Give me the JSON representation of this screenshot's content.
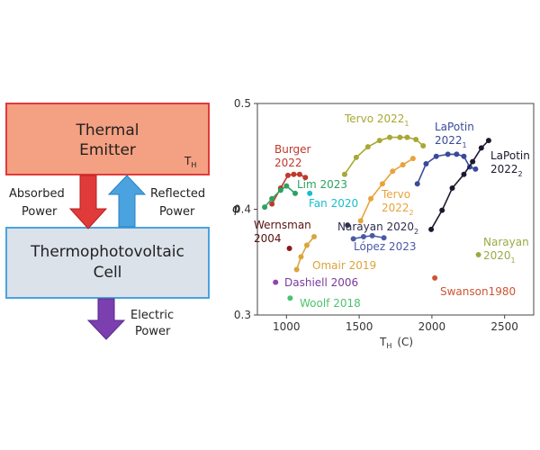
{
  "diagram": {
    "emitter": {
      "line1": "Thermal",
      "line2": "Emitter",
      "subscript_main": "T",
      "subscript_sub": "H"
    },
    "cell": {
      "line1": "Thermophotovoltaic",
      "line2": "Cell"
    },
    "absorbed": {
      "line1": "Absorbed",
      "line2": "Power"
    },
    "reflected": {
      "line1": "Reflected",
      "line2": "Power"
    },
    "electric": {
      "line1": "Electric",
      "line2": "Power"
    },
    "colors": {
      "emitter_fill": "#f4a082",
      "emitter_border": "#e03a3a",
      "cell_fill": "#dbe2ea",
      "cell_border": "#4aa3df",
      "absorbed_arrow": "#e03a3a",
      "reflected_arrow": "#4aa3df",
      "electric_arrow": "#7b3fb0"
    }
  },
  "chart_data": {
    "type": "scatter",
    "xlabel_main": "T",
    "xlabel_sub": "H",
    "xlabel_unit": "(C)",
    "ylabel": "φ",
    "xlim": [
      800,
      2700
    ],
    "ylim": [
      0.3,
      0.5
    ],
    "xticks": [
      {
        "value": 1000,
        "label": "1000"
      },
      {
        "value": 1500,
        "label": "1500"
      },
      {
        "value": 2000,
        "label": "2000"
      },
      {
        "value": 2500,
        "label": "2500"
      }
    ],
    "yticks": [
      {
        "value": 0.3,
        "label": "0.3"
      },
      {
        "value": 0.4,
        "label": "0.4"
      },
      {
        "value": 0.5,
        "label": "0.5"
      }
    ],
    "grid": false,
    "series": [
      {
        "name": "Burger 2022",
        "color": "#c0392b",
        "connect": true,
        "points": [
          [
            900,
            0.405
          ],
          [
            960,
            0.42
          ],
          [
            1010,
            0.432
          ],
          [
            1050,
            0.433
          ],
          [
            1090,
            0.433
          ],
          [
            1130,
            0.43
          ]
        ]
      },
      {
        "name": "Lim 2023",
        "color": "#2ca25f",
        "connect": true,
        "points": [
          [
            850,
            0.402
          ],
          [
            900,
            0.41
          ],
          [
            960,
            0.418
          ],
          [
            1000,
            0.422
          ],
          [
            1060,
            0.415
          ]
        ]
      },
      {
        "name": "Fan 2020",
        "color": "#17becf",
        "connect": false,
        "points": [
          [
            1160,
            0.415
          ]
        ]
      },
      {
        "name": "Wernsman 2004",
        "color": "#8b1a1a",
        "connect": false,
        "points": [
          [
            1020,
            0.363
          ]
        ]
      },
      {
        "name": "Omair 2019",
        "color": "#d9a53a",
        "connect": true,
        "points": [
          [
            1070,
            0.343
          ],
          [
            1100,
            0.355
          ],
          [
            1140,
            0.366
          ],
          [
            1190,
            0.374
          ]
        ]
      },
      {
        "name": "Dashiell 2006",
        "color": "#8e44ad",
        "connect": false,
        "points": [
          [
            925,
            0.331
          ]
        ]
      },
      {
        "name": "Woolf 2018",
        "color": "#4cc26e",
        "connect": false,
        "points": [
          [
            1025,
            0.316
          ]
        ]
      },
      {
        "name": "Tervo 2022_1",
        "color": "#a8a834",
        "connect": true,
        "points": [
          [
            1400,
            0.433
          ],
          [
            1480,
            0.449
          ],
          [
            1560,
            0.459
          ],
          [
            1640,
            0.465
          ],
          [
            1710,
            0.468
          ],
          [
            1780,
            0.468
          ],
          [
            1830,
            0.468
          ],
          [
            1890,
            0.466
          ],
          [
            1940,
            0.46
          ]
        ]
      },
      {
        "name": "Tervo 2022_2",
        "color": "#e8a33a",
        "connect": true,
        "points": [
          [
            1510,
            0.389
          ],
          [
            1580,
            0.41
          ],
          [
            1660,
            0.424
          ],
          [
            1730,
            0.436
          ],
          [
            1800,
            0.442
          ],
          [
            1870,
            0.448
          ]
        ]
      },
      {
        "name": "Narayan 2020_2",
        "color": "#2f2f4f",
        "connect": false,
        "points": [
          [
            1420,
            0.385
          ]
        ]
      },
      {
        "name": "López 2023",
        "color": "#4a5aa8",
        "connect": true,
        "points": [
          [
            1460,
            0.372
          ],
          [
            1530,
            0.374
          ],
          [
            1590,
            0.375
          ],
          [
            1670,
            0.373
          ]
        ]
      },
      {
        "name": "LaPotin 2022_1",
        "color": "#3a4a9a",
        "connect": true,
        "points": [
          [
            1900,
            0.424
          ],
          [
            1960,
            0.443
          ],
          [
            2030,
            0.45
          ],
          [
            2110,
            0.452
          ],
          [
            2170,
            0.452
          ],
          [
            2220,
            0.45
          ],
          [
            2260,
            0.44
          ],
          [
            2300,
            0.438
          ]
        ]
      },
      {
        "name": "LaPotin 2022_2",
        "color": "#1a1a2e",
        "connect": true,
        "points": [
          [
            1995,
            0.381
          ],
          [
            2070,
            0.399
          ],
          [
            2140,
            0.42
          ],
          [
            2220,
            0.433
          ],
          [
            2280,
            0.445
          ],
          [
            2340,
            0.458
          ],
          [
            2390,
            0.465
          ]
        ]
      },
      {
        "name": "Narayan 2020_1",
        "color": "#9aaa44",
        "connect": false,
        "points": [
          [
            2320,
            0.357
          ]
        ]
      },
      {
        "name": "Swanson1980",
        "color": "#cc5533",
        "connect": false,
        "points": [
          [
            2020,
            0.335
          ]
        ]
      }
    ],
    "labels": [
      {
        "series": "Burger 2022",
        "lines": [
          "Burger",
          "2022"
        ],
        "sub": "",
        "color": "#c0392b"
      },
      {
        "series": "Lim 2023",
        "lines": [
          "Lim 2023"
        ],
        "sub": "",
        "color": "#2ca25f"
      },
      {
        "series": "Fan 2020",
        "lines": [
          "Fan 2020"
        ],
        "sub": "",
        "color": "#17becf"
      },
      {
        "series": "Wernsman 2004",
        "lines": [
          "Wernsman",
          "2004"
        ],
        "sub": "",
        "color": "#5a1010"
      },
      {
        "series": "Omair 2019",
        "lines": [
          "Omair 2019"
        ],
        "sub": "",
        "color": "#d9a53a"
      },
      {
        "series": "Dashiell 2006",
        "lines": [
          "Dashiell 2006"
        ],
        "sub": "",
        "color": "#7a3a9a"
      },
      {
        "series": "Woolf 2018",
        "lines": [
          "Woolf 2018"
        ],
        "sub": "",
        "color": "#4cc26e"
      },
      {
        "series": "Tervo 2022_1",
        "lines": [
          "Tervo 2022"
        ],
        "sub": "1",
        "color": "#a8a834"
      },
      {
        "series": "Tervo 2022_2",
        "lines": [
          "Tervo",
          "2022"
        ],
        "sub": "2",
        "color": "#e8a33a"
      },
      {
        "series": "Narayan 2020_2",
        "lines": [
          "Narayan 2020"
        ],
        "sub": "2",
        "color": "#2f2f4f"
      },
      {
        "series": "López 2023",
        "lines": [
          "López 2023"
        ],
        "sub": "",
        "color": "#4a5aa8"
      },
      {
        "series": "LaPotin 2022_1",
        "lines": [
          "LaPotin",
          "2022"
        ],
        "sub": "1",
        "color": "#3a4a9a"
      },
      {
        "series": "LaPotin 2022_2",
        "lines": [
          "LaPotin",
          "2022"
        ],
        "sub": "2",
        "color": "#1a1a2e"
      },
      {
        "series": "Narayan 2020_1",
        "lines": [
          "Narayan",
          "2020"
        ],
        "sub": "1",
        "color": "#9aaa44"
      },
      {
        "series": "Swanson1980",
        "lines": [
          "Swanson1980"
        ],
        "sub": "",
        "color": "#cc5533"
      }
    ]
  }
}
